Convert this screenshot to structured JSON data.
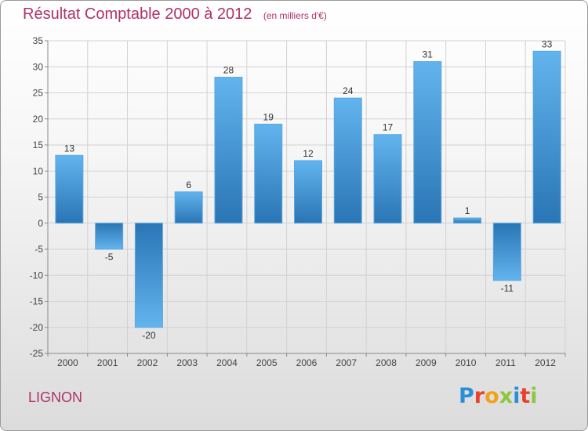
{
  "header": {
    "title": "Résultat Comptable 2000 à 2012",
    "subtitle": "(en milliers d'€)"
  },
  "footer": {
    "commune": "LIGNON",
    "logo_letters": [
      "P",
      "r",
      "o",
      "x",
      "i",
      "t",
      "i"
    ],
    "logo_colors": [
      "#2a8fd6",
      "#e8412c",
      "#f2a21a",
      "#8dc63f",
      "#2a8fd6",
      "#e8412c",
      "#8dc63f"
    ]
  },
  "chart_data": {
    "type": "bar",
    "title": "Résultat Comptable 2000 à 2012",
    "subtitle": "(en milliers d'€)",
    "categories": [
      "2000",
      "2001",
      "2002",
      "2003",
      "2004",
      "2005",
      "2006",
      "2007",
      "2008",
      "2009",
      "2010",
      "2011",
      "2012"
    ],
    "values": [
      13,
      -5,
      -20,
      6,
      28,
      19,
      12,
      24,
      17,
      31,
      1,
      -11,
      33
    ],
    "data_labels": [
      "13",
      "-5",
      "-20",
      "6",
      "28",
      "19",
      "12",
      "24",
      "17",
      "31",
      "1",
      "-11",
      "33"
    ],
    "yticks": [
      35,
      30,
      25,
      20,
      15,
      10,
      5,
      0,
      -5,
      -10,
      -15,
      -20,
      -25
    ],
    "ytick_labels": [
      "35",
      "30",
      "25",
      "20",
      "15",
      "10",
      "5",
      "0",
      "-5",
      "-10",
      "-15",
      "-20",
      "-25"
    ],
    "ylim": [
      -25,
      35
    ],
    "xlabel": "",
    "ylabel": "",
    "grid": true,
    "bar_color": "#3f8fcf",
    "bar_color_light": "#62b4ee",
    "bar_color_dark": "#2a75b5"
  }
}
